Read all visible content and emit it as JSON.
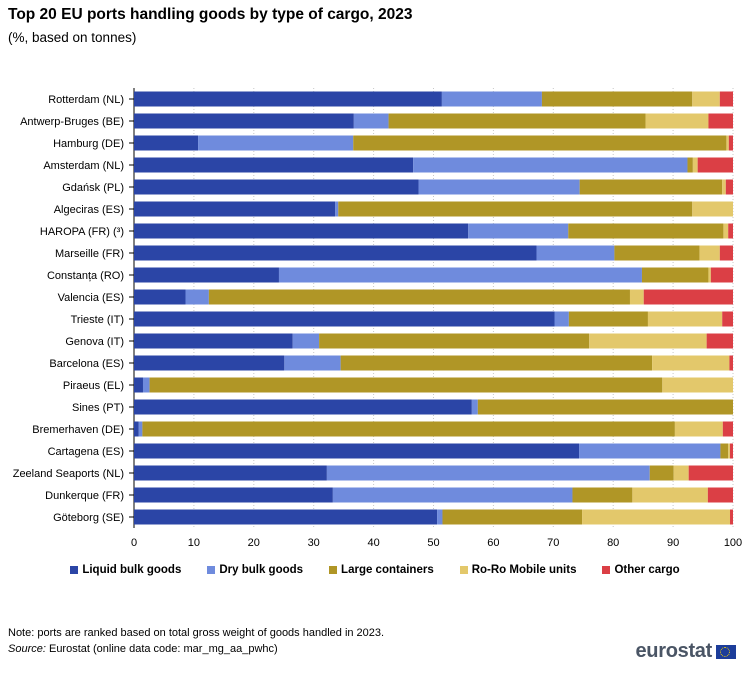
{
  "title": "Top 20 EU ports handling goods by type of cargo, 2023",
  "subtitle": "(%, based on tonnes)",
  "colors": {
    "liquid": "#2b45a6",
    "dry": "#6f8bdd",
    "containers": "#b09626",
    "roro": "#e3c86b",
    "other": "#db3f45",
    "grid": "#c8c8c8"
  },
  "chart_data": {
    "type": "bar",
    "orientation": "horizontal",
    "stacked": true,
    "title": "Top 20 EU ports handling goods by type of cargo, 2023",
    "subtitle": "(%, based on tonnes)",
    "xlabel": "",
    "ylabel": "",
    "xlim": [
      0,
      100
    ],
    "xticks": [
      0,
      10,
      20,
      30,
      40,
      50,
      60,
      70,
      80,
      90,
      100
    ],
    "grid": true,
    "legend_position": "bottom",
    "categories": [
      "Rotterdam (NL)",
      "Antwerp-Bruges (BE)",
      "Hamburg (DE)",
      "Amsterdam (NL)",
      "Gdańsk (PL)",
      "Algeciras (ES)",
      "HAROPA (FR) (³)",
      "Marseille (FR)",
      "Constanța (RO)",
      "Valencia (ES)",
      "Trieste (IT)",
      "Genova (IT)",
      "Barcelona (ES)",
      "Piraeus (EL)",
      "Sines (PT)",
      "Bremerhaven (DE)",
      "Cartagena (ES)",
      "Zeeland Seaports (NL)",
      "Dunkerque (FR)",
      "Göteborg (SE)"
    ],
    "series": [
      {
        "name": "Liquid bulk goods",
        "color_key": "liquid",
        "values": [
          51.4,
          36.7,
          10.7,
          46.6,
          47.5,
          33.6,
          55.8,
          67.2,
          24.2,
          8.6,
          70.2,
          26.5,
          25.1,
          1.5,
          56.4,
          0.8,
          74.3,
          32.2,
          33.2,
          50.6
        ]
      },
      {
        "name": "Dry bulk goods",
        "color_key": "dry",
        "values": [
          16.7,
          5.8,
          25.9,
          45.8,
          26.9,
          0.5,
          16.7,
          13.0,
          60.6,
          3.9,
          2.4,
          4.4,
          9.4,
          1.1,
          1.0,
          0.6,
          23.6,
          53.9,
          40.0,
          0.9
        ]
      },
      {
        "name": "Large containers",
        "color_key": "containers",
        "values": [
          25.1,
          42.9,
          62.3,
          0.9,
          23.8,
          59.1,
          25.9,
          14.2,
          11.1,
          70.3,
          13.2,
          45.1,
          52.0,
          85.6,
          42.6,
          88.9,
          1.3,
          4.0,
          10.0,
          23.3
        ]
      },
      {
        "name": "Ro-Ro Mobile units",
        "color_key": "roro",
        "values": [
          4.6,
          10.5,
          0.4,
          0.8,
          0.6,
          6.8,
          0.8,
          3.4,
          0.4,
          2.3,
          12.4,
          19.6,
          12.9,
          11.8,
          0.0,
          8.0,
          0.3,
          2.5,
          12.6,
          24.7
        ]
      },
      {
        "name": "Other cargo",
        "color_key": "other",
        "values": [
          2.2,
          4.1,
          0.7,
          5.9,
          1.2,
          0.0,
          0.8,
          2.2,
          3.7,
          14.9,
          1.8,
          4.4,
          0.6,
          0.0,
          0.0,
          1.7,
          0.5,
          7.4,
          4.2,
          0.5
        ]
      }
    ]
  },
  "note": "Note: ports are ranked based on total gross weight of goods handled in 2023.",
  "source": {
    "label": "Source:",
    "text": " Eurostat (online data code: mar_mg_aa_pwhc)"
  },
  "logo": {
    "text": "eurostat"
  }
}
